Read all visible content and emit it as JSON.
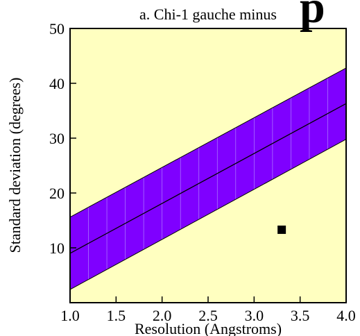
{
  "chart_data": {
    "type": "area",
    "title": "a. Chi-1 gauche minus",
    "corner_glyph": "p",
    "xlabel": "Resolution (Angstroms)",
    "ylabel": "Standard deviation (degrees)",
    "xlim": [
      1.0,
      4.0
    ],
    "ylim": [
      0,
      50
    ],
    "x_ticks": [
      "1.0",
      "1.5",
      "2.0",
      "2.5",
      "3.0",
      "3.5",
      "4.0"
    ],
    "y_ticks": [
      "10",
      "20",
      "30",
      "40",
      "50"
    ],
    "grid": false,
    "colors": {
      "plot_background": "#ffffc0",
      "band_fill": "#7f00ff",
      "band_stripes": "#b080ff",
      "line": "#000000",
      "point": "#000000"
    },
    "band": {
      "x": [
        1.0,
        4.0
      ],
      "lower": [
        2.4,
        29.8
      ],
      "upper": [
        15.6,
        42.8
      ]
    },
    "series": [
      {
        "type": "line",
        "x": [
          1.0,
          4.0
        ],
        "y": [
          9.0,
          36.3
        ]
      },
      {
        "type": "scatter",
        "marker": "square",
        "x": [
          3.3
        ],
        "y": [
          13.3
        ]
      }
    ]
  }
}
